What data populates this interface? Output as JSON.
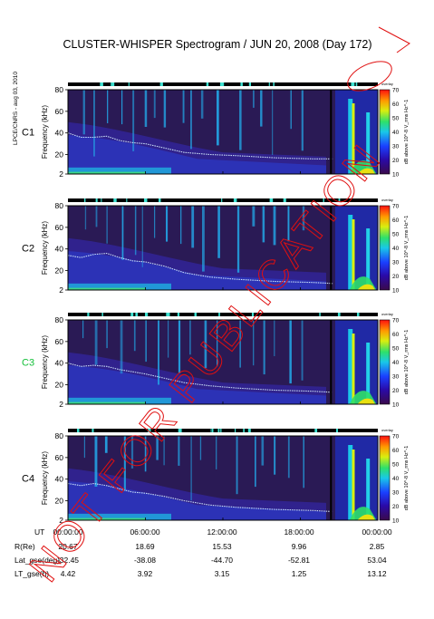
{
  "title": "CLUSTER-WHISPER Spectrogram / JUN 20, 2008 (Day 172)",
  "side_label": "LPCE/CNRS - aug 03, 2010",
  "watermark": "NOT FOR PUBLICATION",
  "colors": {
    "title": "#000000",
    "c3_label": "#15c03a",
    "watermark": "#e01010",
    "activity_bar": "#000000",
    "activity_marks": "#3ee0d0"
  },
  "activity_label": "overlay",
  "chart_data": [
    {
      "type": "heatmap",
      "spacecraft": "C1",
      "ylabel": "Frequency (kHz)",
      "ylim": [
        2,
        80
      ],
      "yticks": [
        2,
        20,
        40,
        60,
        80
      ],
      "xlim": [
        0,
        24
      ],
      "colorbar": {
        "label": "dB above 10^-8 V_rms Hz^-1",
        "range": [
          10,
          70
        ],
        "ticks": [
          10,
          20,
          30,
          40,
          50,
          60,
          70
        ]
      },
      "plasma_line_khz": [
        [
          0.0,
          40
        ],
        [
          1.0,
          36
        ],
        [
          2.0,
          36
        ],
        [
          3.0,
          37
        ],
        [
          4.0,
          33
        ],
        [
          5.0,
          31
        ],
        [
          6.0,
          30
        ],
        [
          7.5,
          26
        ],
        [
          9.0,
          22
        ],
        [
          11.0,
          20
        ],
        [
          13.0,
          19
        ],
        [
          16.0,
          17
        ],
        [
          19.0,
          16
        ],
        [
          20.5,
          16
        ]
      ]
    },
    {
      "type": "heatmap",
      "spacecraft": "C2",
      "ylabel": "Frequency (kHz)",
      "ylim": [
        2,
        80
      ],
      "yticks": [
        2,
        20,
        40,
        60,
        80
      ],
      "xlim": [
        0,
        24
      ],
      "colorbar": {
        "label": "dB above 10^-8 V_rms Hz^-1",
        "range": [
          10,
          70
        ],
        "ticks": [
          10,
          20,
          30,
          40,
          50,
          60,
          70
        ]
      },
      "plasma_line_khz": [
        [
          0.0,
          34
        ],
        [
          1.0,
          32
        ],
        [
          2.0,
          35
        ],
        [
          3.0,
          36
        ],
        [
          4.0,
          32
        ],
        [
          5.0,
          29
        ],
        [
          6.0,
          28
        ],
        [
          7.5,
          24
        ],
        [
          9.0,
          18
        ],
        [
          11.0,
          14
        ],
        [
          13.0,
          12
        ],
        [
          16.0,
          10
        ],
        [
          19.0,
          9
        ],
        [
          20.5,
          8
        ]
      ]
    },
    {
      "type": "heatmap",
      "spacecraft": "C3",
      "ylabel": "Frequency (kHz)",
      "ylim": [
        2,
        80
      ],
      "yticks": [
        2,
        20,
        40,
        60,
        80
      ],
      "xlim": [
        0,
        24
      ],
      "colorbar": {
        "label": "dB above 10^-8 V_rms Hz^-1",
        "range": [
          10,
          70
        ],
        "ticks": [
          10,
          20,
          30,
          40,
          50,
          60,
          70
        ]
      },
      "plasma_line_khz": [
        [
          0.0,
          40
        ],
        [
          1.0,
          37
        ],
        [
          2.0,
          38
        ],
        [
          3.0,
          37
        ],
        [
          4.0,
          34
        ],
        [
          5.0,
          32
        ],
        [
          6.0,
          30
        ],
        [
          7.5,
          26
        ],
        [
          9.0,
          22
        ],
        [
          11.0,
          19
        ],
        [
          13.0,
          17
        ],
        [
          16.0,
          15
        ],
        [
          19.0,
          14
        ],
        [
          20.5,
          13
        ]
      ]
    },
    {
      "type": "heatmap",
      "spacecraft": "C4",
      "ylabel": "Frequency (kHz)",
      "ylim": [
        2,
        80
      ],
      "yticks": [
        2,
        20,
        40,
        60,
        80
      ],
      "xlim": [
        0,
        24
      ],
      "colorbar": {
        "label": "dB above 10^-8 V_rms Hz^-1",
        "range": [
          10,
          70
        ],
        "ticks": [
          10,
          20,
          30,
          40,
          50,
          60,
          70
        ]
      },
      "plasma_line_khz": [
        [
          0.0,
          36
        ],
        [
          1.0,
          34
        ],
        [
          2.0,
          36
        ],
        [
          3.0,
          34
        ],
        [
          4.0,
          31
        ],
        [
          5.0,
          28
        ],
        [
          6.0,
          27
        ],
        [
          7.5,
          24
        ],
        [
          9.0,
          20
        ],
        [
          11.0,
          16
        ],
        [
          13.0,
          14
        ],
        [
          16.0,
          12
        ],
        [
          19.0,
          11
        ],
        [
          20.5,
          10
        ]
      ]
    }
  ],
  "orbit_table": {
    "rows": [
      {
        "label": "UT",
        "values": [
          "00:00:00",
          "06:00:00",
          "12:00:00",
          "18:00:00",
          "00:00:00"
        ]
      },
      {
        "label": "R(Re)",
        "values": [
          "20.67",
          "18.69",
          "15.53",
          "9.96",
          "2.85"
        ]
      },
      {
        "label": "Lat_gse(deg)",
        "values": [
          "-32.45",
          "-38.08",
          "-44.70",
          "-52.81",
          "53.04"
        ]
      },
      {
        "label": "LT_gse(h)",
        "values": [
          "4.42",
          "3.92",
          "3.15",
          "1.25",
          "13.12"
        ]
      }
    ]
  }
}
